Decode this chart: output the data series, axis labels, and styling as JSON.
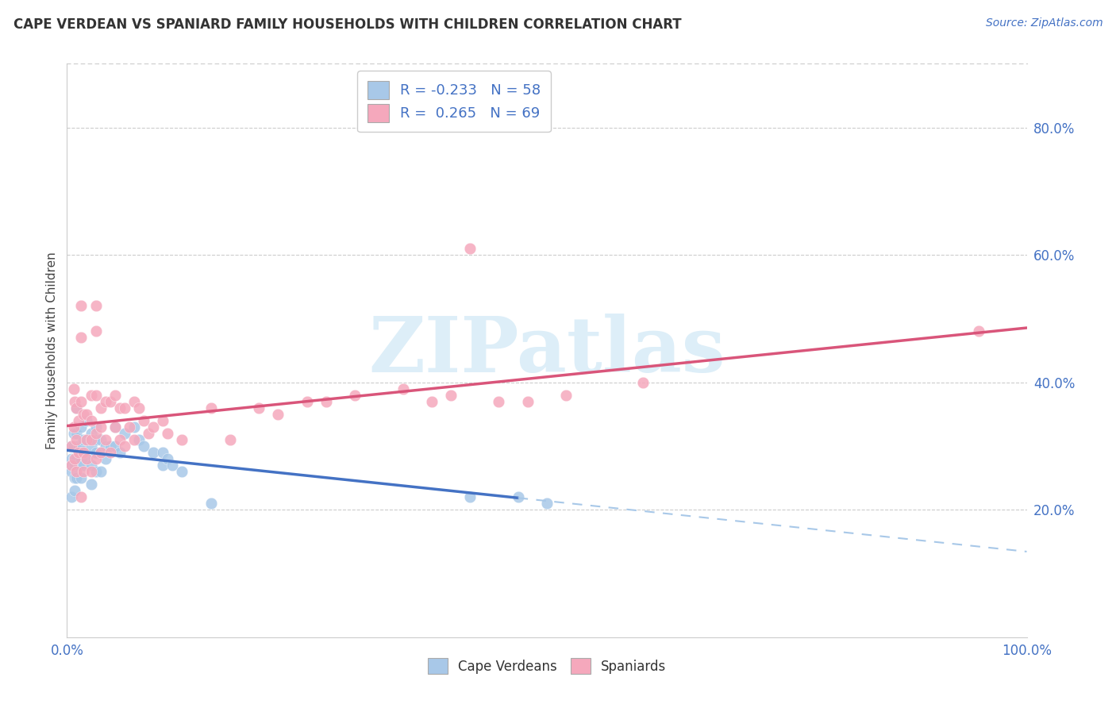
{
  "title": "CAPE VERDEAN VS SPANIARD FAMILY HOUSEHOLDS WITH CHILDREN CORRELATION CHART",
  "source": "Source: ZipAtlas.com",
  "ylabel": "Family Households with Children",
  "xlim": [
    0,
    100
  ],
  "ylim": [
    0,
    90
  ],
  "yticks": [
    20,
    40,
    60,
    80
  ],
  "ytick_labels": [
    "20.0%",
    "40.0%",
    "60.0%",
    "80.0%"
  ],
  "color_blue": "#a8c8e8",
  "color_pink": "#f5a8bc",
  "color_blue_line": "#4472c4",
  "color_pink_line": "#d9557a",
  "color_blue_dash": "#a8c8e8",
  "watermark_text": "ZIPatlas",
  "watermark_color": "#ddeef8",
  "legend_r1_text": "R = -0.233",
  "legend_n1_text": "N = 58",
  "legend_r2_text": "R =  0.265",
  "legend_n2_text": "N = 69",
  "legend_color": "#4472c4",
  "cv_x": [
    0.5,
    0.5,
    0.5,
    0.5,
    0.5,
    0.7,
    0.7,
    0.7,
    0.8,
    0.8,
    0.8,
    1.0,
    1.0,
    1.0,
    1.0,
    1.2,
    1.2,
    1.5,
    1.5,
    1.5,
    1.5,
    1.7,
    1.7,
    1.7,
    2.0,
    2.0,
    2.0,
    2.5,
    2.5,
    2.5,
    2.5,
    3.0,
    3.0,
    3.0,
    3.0,
    3.5,
    3.5,
    3.5,
    4.0,
    4.0,
    4.5,
    5.0,
    5.0,
    5.5,
    6.0,
    7.0,
    7.5,
    8.0,
    9.0,
    10.0,
    10.0,
    10.5,
    11.0,
    12.0,
    15.0,
    42.0,
    47.0,
    50.0
  ],
  "cv_y": [
    30,
    28,
    27,
    26,
    22,
    32,
    30,
    28,
    27,
    25,
    23,
    36,
    32,
    28,
    25,
    30,
    27,
    33,
    30,
    28,
    25,
    31,
    29,
    27,
    34,
    31,
    28,
    32,
    30,
    27,
    24,
    33,
    31,
    29,
    26,
    31,
    29,
    26,
    30,
    28,
    30,
    33,
    30,
    29,
    32,
    33,
    31,
    30,
    29,
    29,
    27,
    28,
    27,
    26,
    21,
    22,
    22,
    21
  ],
  "sp_x": [
    0.5,
    0.5,
    0.7,
    0.7,
    0.8,
    0.8,
    1.0,
    1.0,
    1.0,
    1.2,
    1.2,
    1.5,
    1.5,
    1.5,
    1.5,
    1.7,
    1.7,
    1.7,
    2.0,
    2.0,
    2.0,
    2.5,
    2.5,
    2.5,
    2.5,
    3.0,
    3.0,
    3.0,
    3.0,
    3.0,
    3.5,
    3.5,
    3.5,
    4.0,
    4.0,
    4.5,
    4.5,
    5.0,
    5.0,
    5.5,
    5.5,
    6.0,
    6.0,
    6.5,
    7.0,
    7.0,
    7.5,
    8.0,
    8.5,
    9.0,
    10.0,
    10.5,
    12.0,
    15.0,
    17.0,
    20.0,
    22.0,
    25.0,
    27.0,
    30.0,
    35.0,
    38.0,
    40.0,
    42.0,
    45.0,
    48.0,
    52.0,
    60.0,
    95.0
  ],
  "sp_y": [
    30,
    27,
    39,
    33,
    37,
    28,
    36,
    31,
    26,
    34,
    29,
    52,
    47,
    37,
    22,
    35,
    29,
    26,
    35,
    31,
    28,
    38,
    34,
    31,
    26,
    52,
    48,
    38,
    32,
    28,
    36,
    33,
    29,
    37,
    31,
    37,
    29,
    38,
    33,
    36,
    31,
    36,
    30,
    33,
    37,
    31,
    36,
    34,
    32,
    33,
    34,
    32,
    31,
    36,
    31,
    36,
    35,
    37,
    37,
    38,
    39,
    37,
    38,
    61,
    37,
    37,
    38,
    40,
    48
  ]
}
